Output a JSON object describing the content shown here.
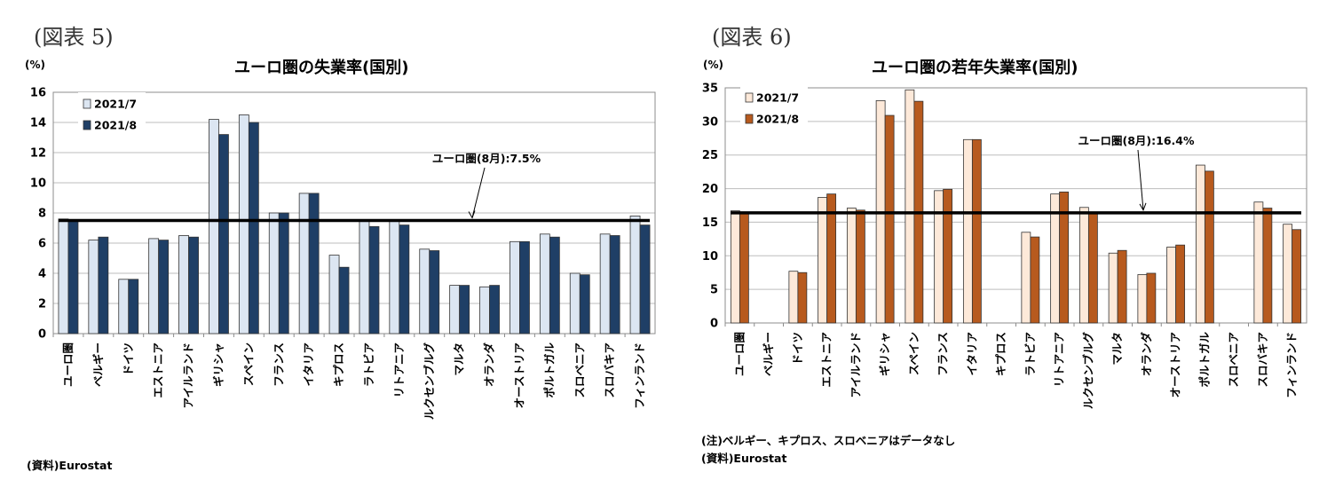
{
  "left": {
    "figure_label": "(図表 5)",
    "unit_label": "(%)",
    "source_note": "(資料)Eurostat"
  },
  "right": {
    "figure_label": "(図表 6)",
    "unit_label": "(%)",
    "footnote": "(注)ベルギー、キプロス、スロベニアはデータなし",
    "source_note": "(資料)Eurostat"
  },
  "chart_data": [
    {
      "type": "bar",
      "title": "ユーロ圏の失業率(国別)",
      "ylabel": "(%)",
      "ylim": [
        0,
        16
      ],
      "yticks": [
        0,
        2,
        4,
        6,
        8,
        10,
        12,
        14,
        16
      ],
      "grid": true,
      "legend_position": "top-left",
      "categories": [
        "ユーロ圏",
        "ベルギー",
        "ドイツ",
        "エストニア",
        "アイルランド",
        "ギリシャ",
        "スペイン",
        "フランス",
        "イタリア",
        "キプロス",
        "ラトビア",
        "リトアニア",
        "ルクセンブルグ",
        "マルタ",
        "オランダ",
        "オーストリア",
        "ポルトガル",
        "スロベニア",
        "スロバキア",
        "フィンランド"
      ],
      "series": [
        {
          "name": "2021/7",
          "color": "#dce6f2",
          "values": [
            7.6,
            6.2,
            3.6,
            6.3,
            6.5,
            14.2,
            14.5,
            8.0,
            9.3,
            5.2,
            7.5,
            7.5,
            5.6,
            3.2,
            3.1,
            6.1,
            6.6,
            4.0,
            6.6,
            7.8
          ]
        },
        {
          "name": "2021/8",
          "color": "#1f3f66",
          "values": [
            7.5,
            6.4,
            3.6,
            6.2,
            6.4,
            13.2,
            14.0,
            8.0,
            9.3,
            4.4,
            7.1,
            7.2,
            5.5,
            3.2,
            3.2,
            6.1,
            6.4,
            3.9,
            6.5,
            7.2
          ]
        }
      ],
      "reference_line": {
        "value": 7.5,
        "label": "ユーロ圏(8月):7.5%"
      }
    },
    {
      "type": "bar",
      "title": "ユーロ圏の若年失業率(国別)",
      "ylabel": "(%)",
      "ylim": [
        0,
        35
      ],
      "yticks": [
        0,
        5,
        10,
        15,
        20,
        25,
        30,
        35
      ],
      "grid": true,
      "legend_position": "top-left",
      "categories": [
        "ユーロ圏",
        "ベルギー",
        "ドイツ",
        "エストニア",
        "アイルランド",
        "ギリシャ",
        "スペイン",
        "フランス",
        "イタリア",
        "キプロス",
        "ラトビア",
        "リトアニア",
        "ルクセンブルグ",
        "マルタ",
        "オランダ",
        "オーストリア",
        "ポルトガル",
        "スロベニア",
        "スロバキア",
        "フィンランド"
      ],
      "series": [
        {
          "name": "2021/7",
          "color": "#fde9d9",
          "values": [
            16.7,
            null,
            7.7,
            18.7,
            17.1,
            33.1,
            34.7,
            19.7,
            27.3,
            null,
            13.5,
            19.2,
            17.2,
            10.4,
            7.2,
            11.3,
            23.5,
            null,
            18.0,
            14.7
          ]
        },
        {
          "name": "2021/8",
          "color": "#b75a1e",
          "values": [
            16.4,
            null,
            7.5,
            19.2,
            16.8,
            30.9,
            33.0,
            19.9,
            27.3,
            null,
            12.8,
            19.5,
            16.4,
            10.8,
            7.4,
            11.6,
            22.6,
            null,
            17.1,
            13.9
          ]
        }
      ],
      "reference_line": {
        "value": 16.4,
        "label": "ユーロ圏(8月):16.4%"
      }
    }
  ]
}
